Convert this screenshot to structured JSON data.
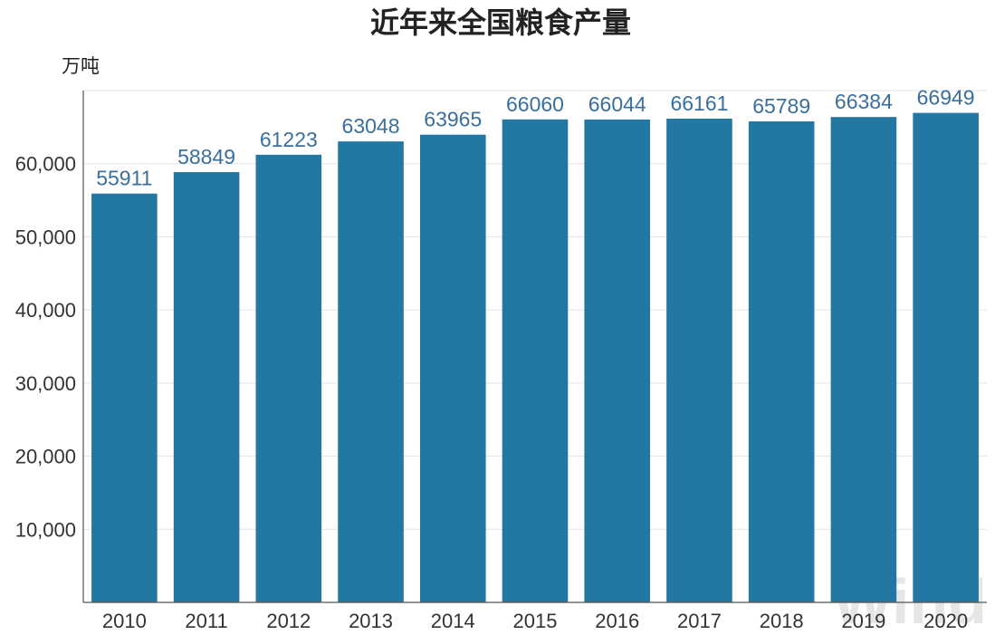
{
  "chart_data": {
    "type": "bar",
    "title": "近年来全国粮食产量",
    "unit_label": "万吨",
    "categories": [
      "2010",
      "2011",
      "2012",
      "2013",
      "2014",
      "2015",
      "2016",
      "2017",
      "2018",
      "2019",
      "2020"
    ],
    "values": [
      55911,
      58849,
      61223,
      63048,
      63965,
      66060,
      66044,
      66161,
      65789,
      66384,
      66949
    ],
    "y_ticks": [
      "10,000",
      "20,000",
      "30,000",
      "40,000",
      "50,000",
      "60,000"
    ],
    "ylim": [
      0,
      70000
    ],
    "grid": true,
    "watermark": "Wind",
    "colors": {
      "bar": "#2277a3",
      "data_label": "#3a6f9e",
      "grid": "#e3e3e3",
      "axis": "#555555"
    }
  }
}
